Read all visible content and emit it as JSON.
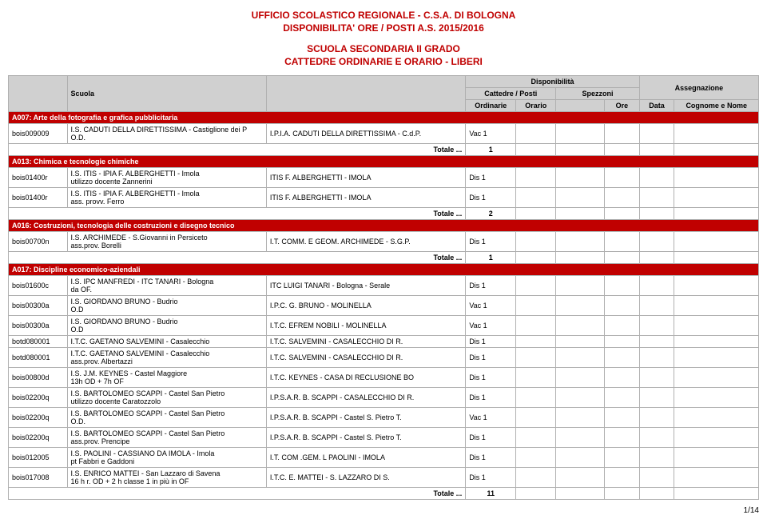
{
  "header": {
    "line1": "UFFICIO SCOLASTICO REGIONALE - C.S.A. DI BOLOGNA",
    "line2": "DISPONIBILITA' ORE / POSTI A.S. 2015/2016",
    "line3": "SCUOLA SECONDARIA II GRADO",
    "line4": "CATTEDRE ORDINARIE E ORARIO - LIBERI"
  },
  "columns": {
    "scuola": "Scuola",
    "disponibilita": "Disponibilità",
    "cattedre": "Cattedre / Posti",
    "spezzoni": "Spezzoni",
    "assegnazione": "Assegnazione",
    "ordinarie": "Ordinarie",
    "orario": "Orario",
    "ore": "Ore",
    "data": "Data",
    "cognome": "Cognome e Nome"
  },
  "totale_label": "Totale ...",
  "sections": [
    {
      "title": "A007: Arte della fotografia e grafica pubblicitaria",
      "rows": [
        {
          "code": "bois009009",
          "scuola": "I.S. CADUTI DELLA DIRETTISSIMA - Castiglione dei P",
          "note": "O.D.",
          "sede": "I.P.I.A. CADUTI DELLA DIRETTISSIMA - C.d.P.",
          "ord": "Vac 1"
        }
      ],
      "totale": "1"
    },
    {
      "title": "A013: Chimica e tecnologie chimiche",
      "rows": [
        {
          "code": "bois01400r",
          "scuola": "I.S. ITIS - IPIA F. ALBERGHETTI - Imola",
          "note": "utilizzo docente Zannerini",
          "sede": "ITIS F. ALBERGHETTI - IMOLA",
          "ord": "Dis 1"
        },
        {
          "code": "bois01400r",
          "scuola": "I.S. ITIS - IPIA F. ALBERGHETTI - Imola",
          "note": "ass. provv. Ferro",
          "sede": "ITIS F. ALBERGHETTI - IMOLA",
          "ord": "Dis 1"
        }
      ],
      "totale": "2"
    },
    {
      "title": "A016: Costruzioni, tecnologia delle costruzioni e disegno tecnico",
      "rows": [
        {
          "code": "bois00700n",
          "scuola": "I.S. ARCHIMEDE - S.Giovanni in Persiceto",
          "note": "ass.prov. Borelli",
          "sede": "I.T. COMM. E GEOM. ARCHIMEDE - S.G.P.",
          "ord": "Dis 1"
        }
      ],
      "totale": "1"
    },
    {
      "title": "A017: Discipline economico-aziendali",
      "rows": [
        {
          "code": "bois01600c",
          "scuola": "I.S. IPC MANFREDI - ITC TANARI - Bologna",
          "note": "da OF.",
          "sede": "ITC LUIGI TANARI - Bologna - Serale",
          "ord": "Dis 1"
        },
        {
          "code": "bois00300a",
          "scuola": "I.S. GIORDANO BRUNO - Budrio",
          "note": "O.D",
          "sede": "I.P.C. G. BRUNO - MOLINELLA",
          "ord": "Vac 1"
        },
        {
          "code": "bois00300a",
          "scuola": "I.S. GIORDANO BRUNO - Budrio",
          "note": "O.D",
          "sede": "I.T.C. EFREM NOBILI - MOLINELLA",
          "ord": "Vac 1"
        },
        {
          "code": "botd080001",
          "scuola": "I.T.C. GAETANO SALVEMINI - Casalecchio",
          "note": "",
          "sede": "I.T.C. SALVEMINI - CASALECCHIO DI R.",
          "ord": "Dis 1"
        },
        {
          "code": "botd080001",
          "scuola": "I.T.C. GAETANO SALVEMINI - Casalecchio",
          "note": "ass.prov. Albertazzi",
          "sede": "I.T.C. SALVEMINI - CASALECCHIO DI R.",
          "ord": "Dis 1"
        },
        {
          "code": "bois00800d",
          "scuola": "I.S. J.M. KEYNES - Castel Maggiore",
          "note": "13h OD + 7h OF",
          "sede": "I.T.C. KEYNES - CASA DI RECLUSIONE BO",
          "ord": "Dis 1"
        },
        {
          "code": "bois02200q",
          "scuola": "I.S. BARTOLOMEO SCAPPI - Castel San Pietro",
          "note": "utilizzo docente Caratozzolo",
          "sede": "I.P.S.A.R. B. SCAPPI - CASALECCHIO DI R.",
          "ord": "Dis 1"
        },
        {
          "code": "bois02200q",
          "scuola": "I.S. BARTOLOMEO SCAPPI - Castel San Pietro",
          "note": "O.D.",
          "sede": "I.P.S.A.R. B. SCAPPI - Castel S. Pietro T.",
          "ord": "Vac 1"
        },
        {
          "code": "bois02200q",
          "scuola": "I.S. BARTOLOMEO SCAPPI - Castel San Pietro",
          "note": "ass.prov. Prencipe",
          "sede": "I.P.S.A.R. B. SCAPPI - Castel S. Pietro T.",
          "ord": "Dis 1"
        },
        {
          "code": "bois012005",
          "scuola": "I.S. PAOLINI - CASSIANO DA IMOLA - Imola",
          "note": "pt Fabbri e Gaddoni",
          "sede": "I.T. COM .GEM. L PAOLINI - IMOLA",
          "ord": "Dis 1"
        },
        {
          "code": "bois017008",
          "scuola": "I.S. ENRICO MATTEI - San Lazzaro di Savena",
          "note": "16 h r. OD + 2 h classe 1 in più in OF",
          "sede": "I.T.C. E. MATTEI - S. LAZZARO DI S.",
          "ord": "Dis 1"
        }
      ],
      "totale": "11"
    }
  ],
  "pagenum": "1/14",
  "style": {
    "accent": "#c00000",
    "header_bg": "#d0d0d0",
    "border": "#b0b0b0",
    "bg": "#ffffff",
    "text": "#000000"
  }
}
